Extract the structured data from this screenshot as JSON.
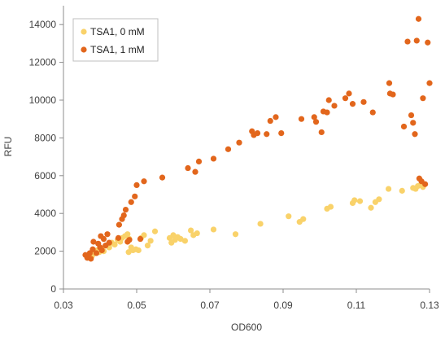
{
  "chart_data": {
    "type": "scatter",
    "title": "",
    "xlabel": "OD600",
    "ylabel": "RFU",
    "xlim": [
      0.03,
      0.13
    ],
    "ylim": [
      0,
      15000
    ],
    "xticks": [
      "0.03",
      "0.05",
      "0.07",
      "0.09",
      "0.11",
      "0.13"
    ],
    "xtick_values": [
      0.03,
      0.05,
      0.07,
      0.09,
      0.11,
      0.13
    ],
    "yticks": [
      "0",
      "2000",
      "4000",
      "6000",
      "8000",
      "10000",
      "12000",
      "14000"
    ],
    "ytick_values": [
      0,
      2000,
      4000,
      6000,
      8000,
      10000,
      12000,
      14000
    ],
    "grid": false,
    "legend_position": "top-left",
    "series": [
      {
        "name": "TSA1, 0 mM",
        "color": "#F9D26A",
        "points": [
          [
            0.0365,
            1700
          ],
          [
            0.0372,
            1850
          ],
          [
            0.0378,
            1750
          ],
          [
            0.0385,
            1900
          ],
          [
            0.0392,
            2050
          ],
          [
            0.0398,
            1950
          ],
          [
            0.0405,
            2150
          ],
          [
            0.041,
            2000
          ],
          [
            0.0418,
            2300
          ],
          [
            0.0425,
            2200
          ],
          [
            0.0432,
            2450
          ],
          [
            0.044,
            2350
          ],
          [
            0.0448,
            2600
          ],
          [
            0.0455,
            2500
          ],
          [
            0.046,
            2700
          ],
          [
            0.0468,
            2800
          ],
          [
            0.0475,
            2900
          ],
          [
            0.048,
            2650
          ],
          [
            0.0485,
            2200
          ],
          [
            0.0478,
            1950
          ],
          [
            0.049,
            2050
          ],
          [
            0.0498,
            2100
          ],
          [
            0.0505,
            2050
          ],
          [
            0.0512,
            2700
          ],
          [
            0.052,
            2850
          ],
          [
            0.053,
            2300
          ],
          [
            0.0538,
            2550
          ],
          [
            0.055,
            3050
          ],
          [
            0.059,
            2700
          ],
          [
            0.0595,
            2450
          ],
          [
            0.06,
            2850
          ],
          [
            0.0605,
            2600
          ],
          [
            0.0612,
            2750
          ],
          [
            0.062,
            2650
          ],
          [
            0.0632,
            2550
          ],
          [
            0.0648,
            3100
          ],
          [
            0.0655,
            2850
          ],
          [
            0.0665,
            2950
          ],
          [
            0.071,
            3150
          ],
          [
            0.077,
            2900
          ],
          [
            0.0838,
            3450
          ],
          [
            0.0915,
            3850
          ],
          [
            0.0945,
            3550
          ],
          [
            0.0955,
            3700
          ],
          [
            0.102,
            4250
          ],
          [
            0.103,
            4350
          ],
          [
            0.109,
            4550
          ],
          [
            0.1095,
            4700
          ],
          [
            0.111,
            4650
          ],
          [
            0.114,
            4300
          ],
          [
            0.1152,
            4600
          ],
          [
            0.1162,
            4750
          ],
          [
            0.1188,
            5300
          ],
          [
            0.1225,
            5200
          ],
          [
            0.1255,
            5350
          ],
          [
            0.1262,
            5300
          ],
          [
            0.1268,
            5450
          ],
          [
            0.1275,
            5500
          ],
          [
            0.1282,
            5400
          ]
        ]
      },
      {
        "name": "TSA1, 1 mM",
        "color": "#E2661C",
        "points": [
          [
            0.036,
            1800
          ],
          [
            0.0365,
            1650
          ],
          [
            0.0372,
            1900
          ],
          [
            0.0375,
            1600
          ],
          [
            0.038,
            2100
          ],
          [
            0.0382,
            2500
          ],
          [
            0.039,
            1900
          ],
          [
            0.0395,
            2400
          ],
          [
            0.04,
            2200
          ],
          [
            0.0402,
            2800
          ],
          [
            0.0405,
            2050
          ],
          [
            0.041,
            2650
          ],
          [
            0.0415,
            2300
          ],
          [
            0.042,
            2900
          ],
          [
            0.0425,
            2450
          ],
          [
            0.045,
            2700
          ],
          [
            0.0452,
            3400
          ],
          [
            0.046,
            3700
          ],
          [
            0.0465,
            3900
          ],
          [
            0.047,
            4200
          ],
          [
            0.0475,
            2500
          ],
          [
            0.048,
            2600
          ],
          [
            0.0485,
            4600
          ],
          [
            0.0495,
            4900
          ],
          [
            0.05,
            5500
          ],
          [
            0.051,
            2650
          ],
          [
            0.052,
            5700
          ],
          [
            0.057,
            5900
          ],
          [
            0.064,
            6400
          ],
          [
            0.066,
            6200
          ],
          [
            0.067,
            6750
          ],
          [
            0.071,
            6900
          ],
          [
            0.075,
            7400
          ],
          [
            0.078,
            7750
          ],
          [
            0.0815,
            8350
          ],
          [
            0.082,
            8150
          ],
          [
            0.083,
            8250
          ],
          [
            0.0855,
            8200
          ],
          [
            0.0865,
            8900
          ],
          [
            0.088,
            9100
          ],
          [
            0.0895,
            8250
          ],
          [
            0.095,
            9000
          ],
          [
            0.0985,
            9100
          ],
          [
            0.099,
            8850
          ],
          [
            0.1005,
            8300
          ],
          [
            0.101,
            9400
          ],
          [
            0.102,
            9350
          ],
          [
            0.1025,
            10000
          ],
          [
            0.104,
            9700
          ],
          [
            0.107,
            10100
          ],
          [
            0.108,
            10350
          ],
          [
            0.109,
            9800
          ],
          [
            0.112,
            9900
          ],
          [
            0.1145,
            9350
          ],
          [
            0.119,
            10900
          ],
          [
            0.1192,
            10350
          ],
          [
            0.12,
            10300
          ],
          [
            0.123,
            8600
          ],
          [
            0.124,
            13100
          ],
          [
            0.125,
            9200
          ],
          [
            0.1255,
            8800
          ],
          [
            0.126,
            8200
          ],
          [
            0.1265,
            13150
          ],
          [
            0.127,
            14300
          ],
          [
            0.1272,
            5850
          ],
          [
            0.1278,
            5700
          ],
          [
            0.1282,
            10100
          ],
          [
            0.1288,
            5550
          ],
          [
            0.1295,
            13050
          ],
          [
            0.13,
            10900
          ]
        ]
      }
    ]
  }
}
